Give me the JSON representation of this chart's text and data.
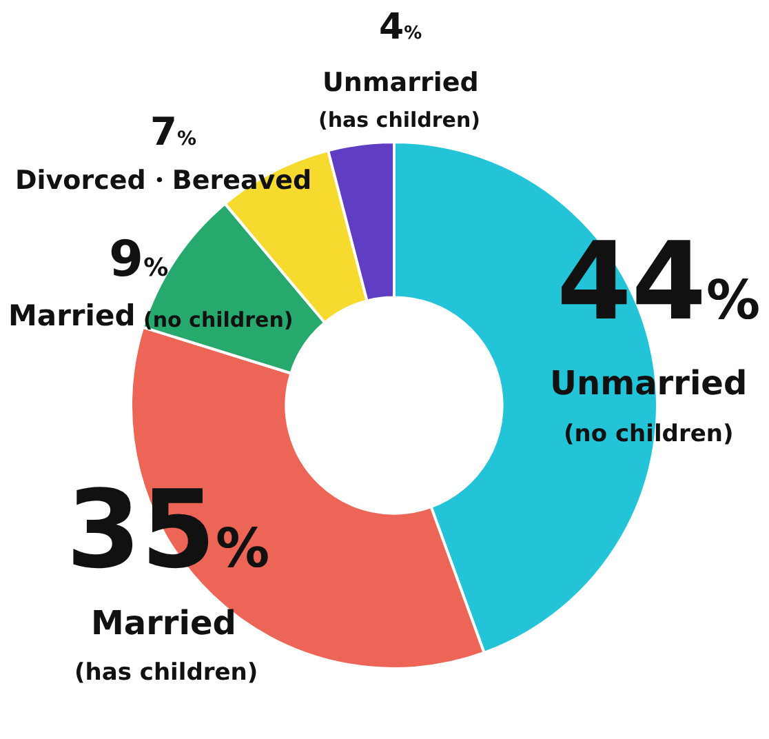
{
  "chart_data": {
    "type": "donut",
    "categories": [
      "Unmarried (no children)",
      "Married (has children)",
      "Married (no children)",
      "Divorced・Bereaved",
      "Unmarried (has children)"
    ],
    "values": [
      44,
      35,
      9,
      7,
      4
    ],
    "value_labels": [
      "44%",
      "35%",
      "9%",
      "7%",
      "4%"
    ],
    "colors": [
      "#24c4d8",
      "#ec6556",
      "#27a86d",
      "#f7da2e",
      "#5f3ec4"
    ],
    "legend": false
  }
}
